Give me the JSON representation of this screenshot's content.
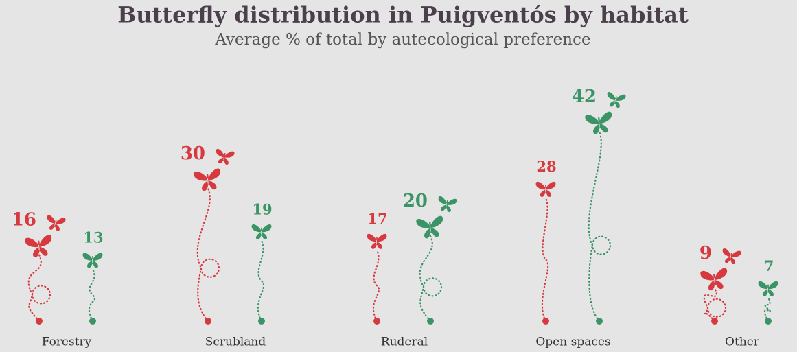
{
  "chart_data": {
    "type": "butterfly-lollipop",
    "title": "Butterfly distribution in Puigventós by habitat",
    "subtitle": "Average % of total by autecological preference",
    "categories": [
      "Forestry",
      "Scrubland",
      "Ruderal",
      "Open spaces",
      "Other"
    ],
    "series": [
      {
        "color": "#d63a3f",
        "values": [
          16,
          30,
          17,
          28,
          9
        ]
      },
      {
        "color": "#3a9466",
        "values": [
          13,
          19,
          20,
          42,
          7
        ]
      }
    ]
  }
}
